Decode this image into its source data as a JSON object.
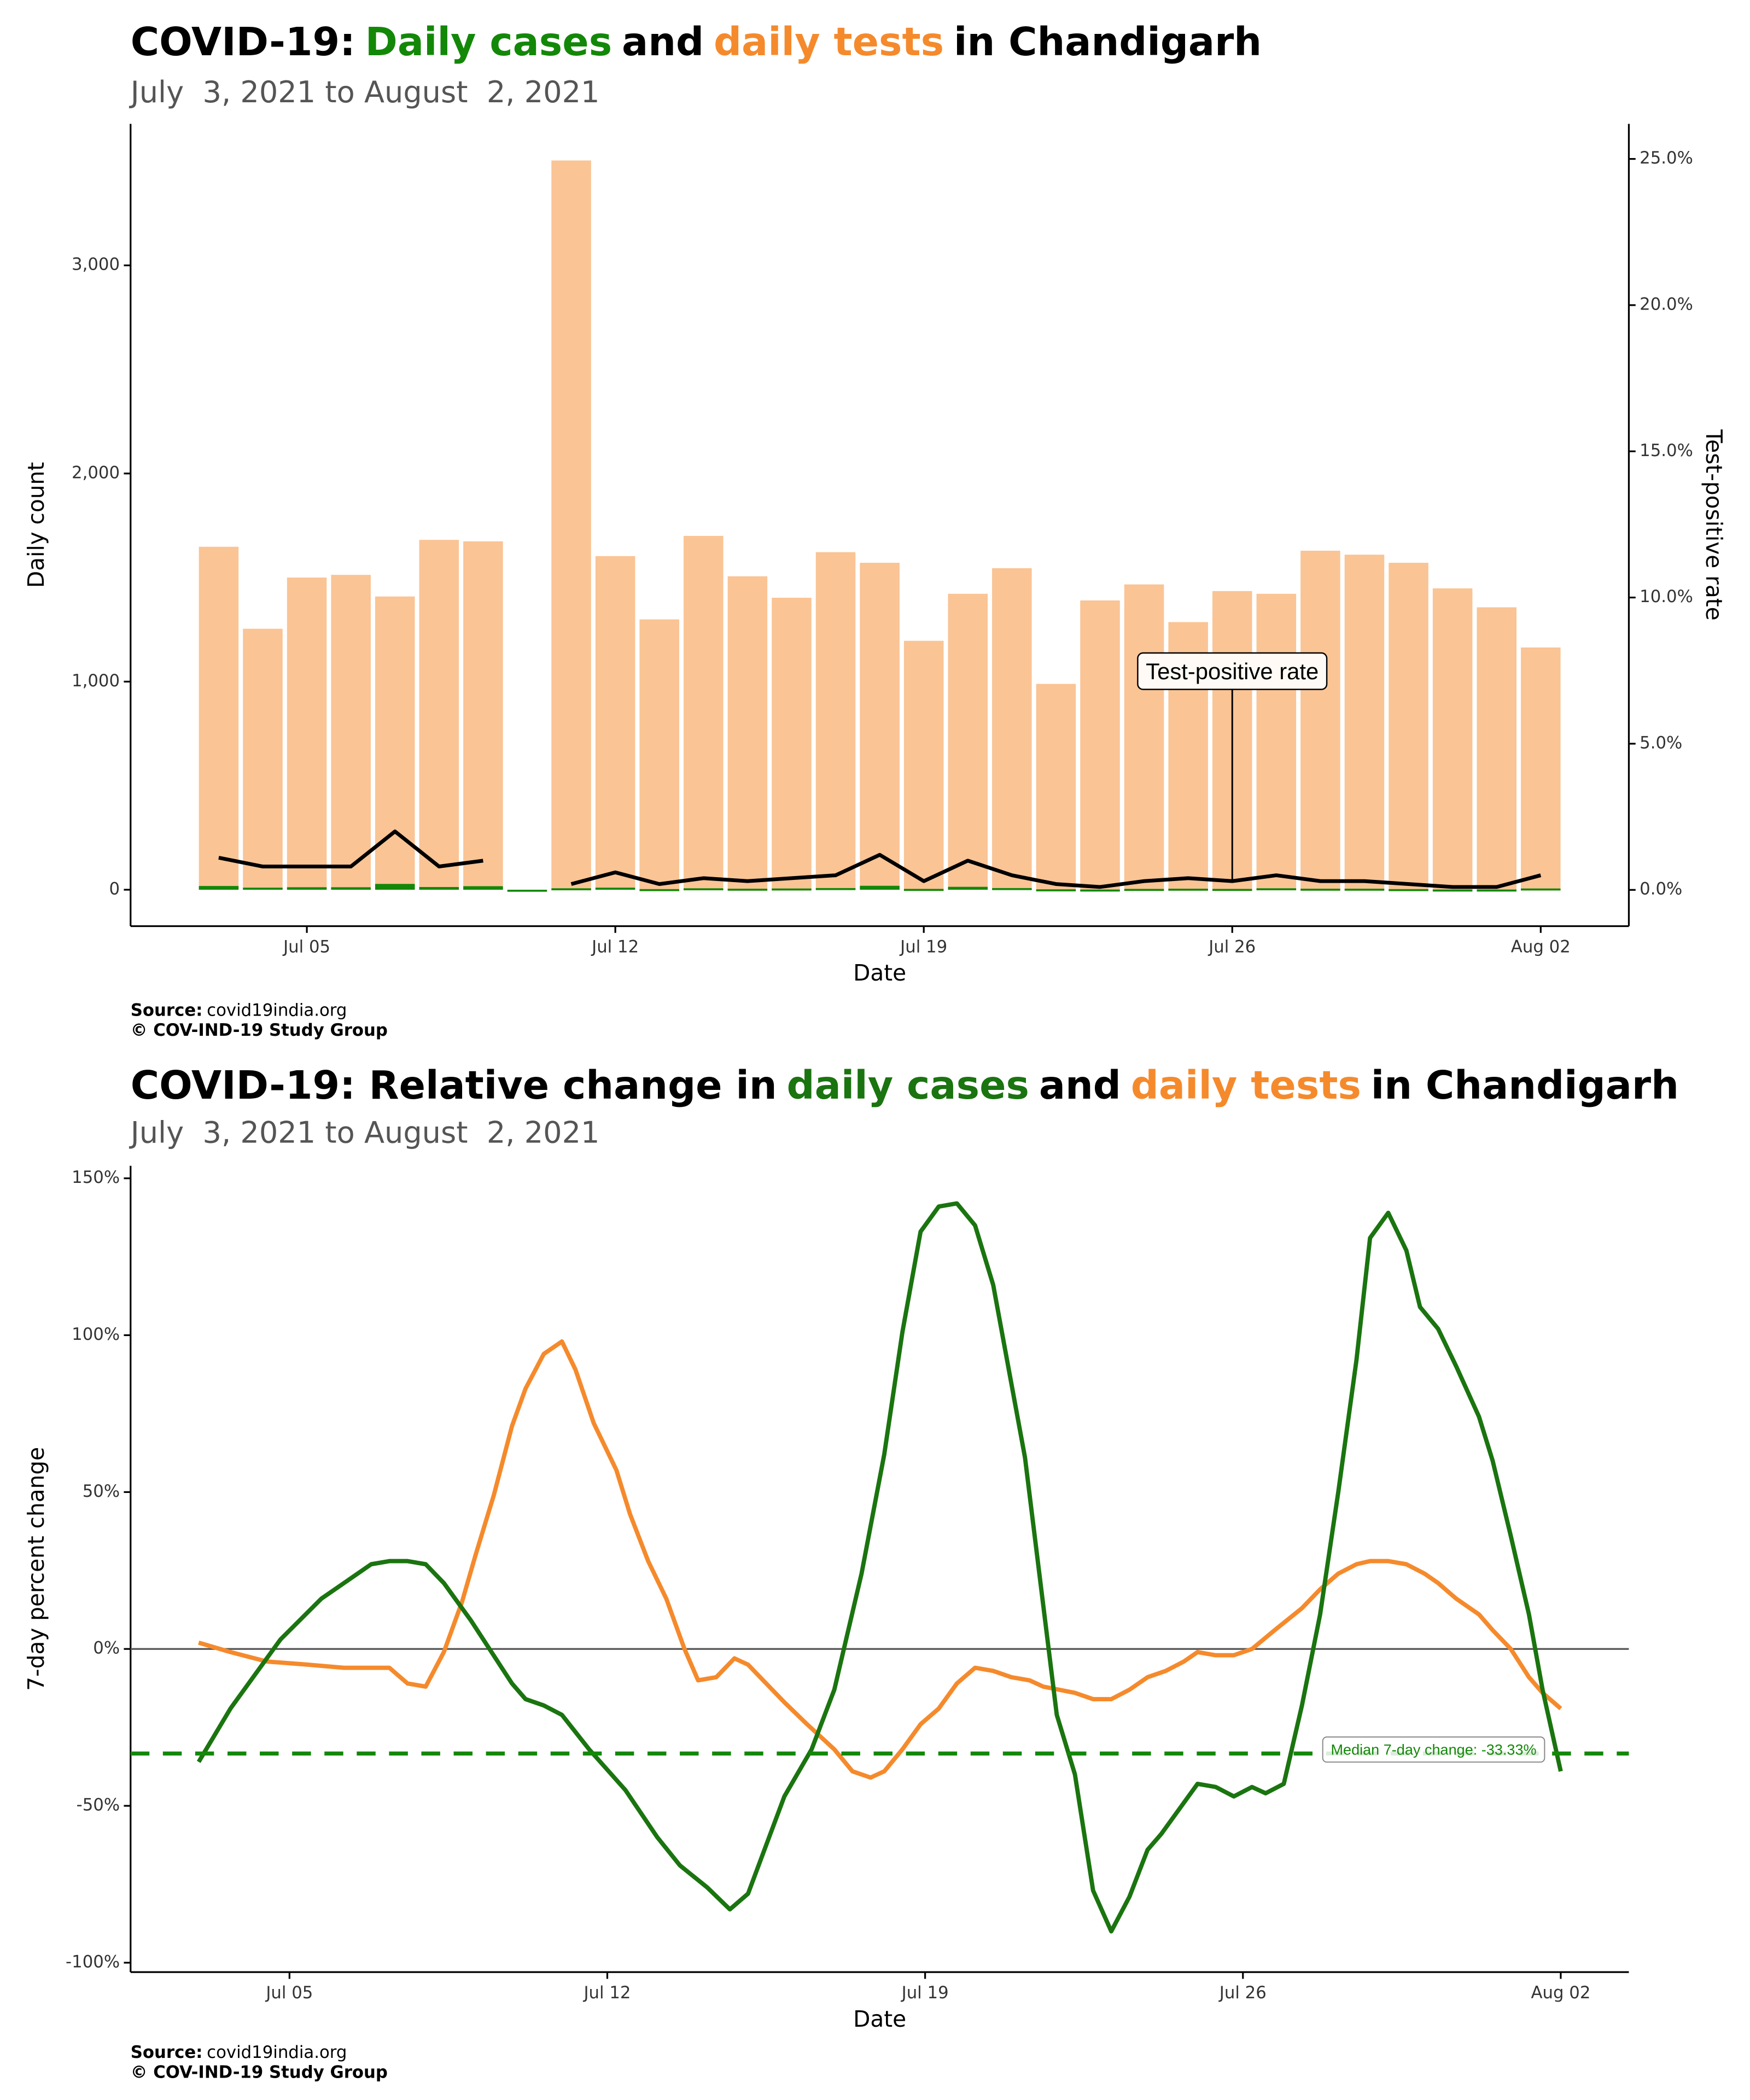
{
  "chart_data": [
    {
      "type": "bar",
      "title": [
        "COVID-19:",
        "and",
        "in Chandigarh"
      ],
      "subtitle": "July  3, 2021 to August  2, 2021",
      "xlabel": "Date",
      "ylabel": "Daily count",
      "y2label": "Test-positive rate",
      "source_label": "Source:",
      "source": "covid19india.org",
      "credit": "© COV-IND-19 Study Group",
      "x": [
        3,
        4,
        5,
        6,
        7,
        8,
        9,
        10,
        11,
        12,
        13,
        14,
        15,
        16,
        17,
        18,
        19,
        20,
        21,
        22,
        23,
        24,
        25,
        26,
        27,
        28,
        29,
        30,
        31,
        32,
        33
      ],
      "xlim": [
        1,
        35
      ],
      "xticks": [
        {
          "value": 5,
          "label": "Jul 05"
        },
        {
          "value": 12,
          "label": "Jul 12"
        },
        {
          "value": 19,
          "label": "Jul 19"
        },
        {
          "value": 26,
          "label": "Jul 26"
        },
        {
          "value": 33,
          "label": "Aug 02"
        }
      ],
      "ylim": [
        -175,
        3680
      ],
      "yticks": [
        0,
        {
          "value": 1000,
          "label": "1,000"
        },
        {
          "value": 2000,
          "label": "2,000"
        },
        {
          "value": 3000,
          "label": "3,000"
        }
      ],
      "y2lim": [
        -1.24,
        26.2
      ],
      "y2ticks": [
        {
          "value": 0,
          "label": "0.0%"
        },
        {
          "value": 5,
          "label": "5.0%"
        },
        {
          "value": 10,
          "label": "10.0%"
        },
        {
          "value": 15,
          "label": "15.0%"
        },
        {
          "value": 20,
          "label": "20.0%"
        },
        {
          "value": 25,
          "label": "25.0%"
        }
      ],
      "grid": false,
      "series": [
        {
          "name": "Daily cases",
          "color": "#138808",
          "values": [
            18,
            10,
            12,
            12,
            28,
            13,
            17,
            0,
            7,
            10,
            3,
            7,
            5,
            6,
            8,
            19,
            4,
            14,
            8,
            2,
            1,
            4,
            5,
            4,
            7,
            5,
            5,
            3,
            1,
            1,
            6
          ]
        },
        {
          "name": "daily tests",
          "color": "#f58a2c",
          "alpha": 0.5,
          "values": [
            1648,
            1254,
            1500,
            1513,
            1409,
            1681,
            1674,
            null,
            3504,
            1603,
            1299,
            1700,
            1506,
            1403,
            1622,
            1571,
            1196,
            1422,
            1545,
            989,
            1390,
            1467,
            1286,
            1435,
            1422,
            1629,
            1610,
            1571,
            1448,
            1357,
            1164
          ]
        },
        {
          "name": "Test-positive rate",
          "color": "#000000",
          "type": "line",
          "axis": "y2",
          "annotate": true,
          "values": [
            1.1,
            0.8,
            0.8,
            0.8,
            2.0,
            0.8,
            1.0,
            null,
            0.2,
            0.6,
            0.2,
            0.4,
            0.3,
            0.4,
            0.5,
            1.2,
            0.3,
            1.0,
            0.5,
            0.2,
            0.1,
            0.3,
            0.4,
            0.3,
            0.5,
            0.3,
            0.3,
            0.2,
            0.1,
            0.1,
            0.5
          ]
        }
      ]
    },
    {
      "type": "line",
      "title": [
        "COVID-19: Relative change in",
        "and",
        "in Chandigarh"
      ],
      "subtitle": "July  3, 2021 to August  2, 2021",
      "xlabel": "Date",
      "ylabel": "7-day percent change",
      "source_label": "Source:",
      "source": "covid19india.org",
      "credit": "© COV-IND-19 Study Group",
      "xlim": [
        1.5,
        34.5
      ],
      "xticks": [
        {
          "value": 5,
          "label": "Jul 05"
        },
        {
          "value": 12,
          "label": "Jul 12"
        },
        {
          "value": 19,
          "label": "Jul 19"
        },
        {
          "value": 26,
          "label": "Jul 26"
        },
        {
          "value": 33,
          "label": "Aug 02"
        }
      ],
      "ylim": [
        -103,
        154
      ],
      "yticks": [
        {
          "value": -100,
          "label": "-100%"
        },
        {
          "value": -50,
          "label": "-50%"
        },
        {
          "value": 0,
          "label": "0%"
        },
        {
          "value": 50,
          "label": "50%"
        },
        {
          "value": 100,
          "label": "100%"
        },
        {
          "value": 150,
          "label": "150%"
        }
      ],
      "grid": false,
      "zero_line": true,
      "hlines": [
        {
          "value": -33.33,
          "label": "Median 7-day change: -33.33%",
          "color": "#138808"
        }
      ],
      "series": [
        {
          "name": "daily cases",
          "color": "#1a740f",
          "x": [
            3.0,
            3.7,
            4.8,
            5.7,
            6.8,
            7.2,
            7.6,
            8.0,
            8.4,
            9.0,
            9.9,
            10.2,
            10.6,
            11.0,
            11.6,
            12.4,
            13.1,
            13.6,
            14.2,
            14.7,
            15.1,
            15.9,
            16.5,
            17.0,
            17.6,
            18.1,
            18.5,
            18.9,
            19.3,
            19.7,
            20.1,
            20.5,
            21.2,
            21.9,
            22.3,
            22.7,
            23.1,
            23.5,
            23.9,
            24.2,
            24.7,
            25.0,
            25.4,
            25.8,
            26.2,
            26.5,
            26.9,
            27.3,
            27.7,
            28.1,
            28.5,
            28.8,
            29.2,
            29.6,
            29.9,
            30.3,
            30.7,
            31.2,
            31.5,
            31.9,
            32.3,
            32.6,
            33.0
          ],
          "values": [
            -36,
            -19,
            3,
            16,
            27,
            28,
            28,
            27,
            21,
            9,
            -11,
            -16,
            -18,
            -21,
            -32,
            -45,
            -60,
            -69,
            -76,
            -83,
            -78,
            -47,
            -32,
            -13,
            24,
            62,
            101,
            133,
            141,
            142,
            135,
            116,
            61,
            -21,
            -40,
            -77,
            -90,
            -79,
            -64,
            -59,
            -49,
            -43,
            -44,
            -47,
            -44,
            -46,
            -43,
            -18,
            11,
            50,
            92,
            131,
            139,
            127,
            109,
            102,
            90,
            74,
            60,
            36,
            11,
            -13,
            -39
          ]
        },
        {
          "name": "daily tests",
          "color": "#f58a2c",
          "x": [
            3.0,
            3.7,
            4.5,
            5.4,
            6.2,
            6.8,
            7.2,
            7.6,
            8.0,
            8.4,
            8.8,
            9.1,
            9.5,
            9.9,
            10.2,
            10.6,
            11.0,
            11.3,
            11.7,
            12.2,
            12.5,
            12.9,
            13.3,
            13.7,
            14.0,
            14.4,
            14.8,
            15.1,
            15.9,
            16.4,
            17.0,
            17.4,
            17.8,
            18.1,
            18.5,
            18.9,
            19.3,
            19.7,
            20.1,
            20.5,
            20.9,
            21.3,
            21.6,
            22.3,
            22.7,
            23.1,
            23.5,
            23.9,
            24.3,
            24.7,
            25.0,
            25.4,
            25.8,
            26.2,
            26.7,
            27.3,
            27.7,
            28.1,
            28.5,
            28.8,
            29.2,
            29.6,
            30.0,
            30.3,
            30.7,
            31.2,
            31.5,
            31.9,
            32.3,
            32.6,
            33.0
          ],
          "values": [
            2,
            -1,
            -4,
            -5,
            -6,
            -6,
            -6,
            -11,
            -12,
            -1,
            15,
            30,
            49,
            71,
            83,
            94,
            98,
            89,
            72,
            57,
            43,
            28,
            16,
            0,
            -10,
            -9,
            -3,
            -5,
            -17,
            -24,
            -32,
            -39,
            -41,
            -39,
            -32,
            -24,
            -19,
            -11,
            -6,
            -7,
            -9,
            -10,
            -12,
            -14,
            -16,
            -16,
            -13,
            -9,
            -7,
            -4,
            -1,
            -2,
            -2,
            0,
            6,
            13,
            19,
            24,
            27,
            28,
            28,
            27,
            24,
            21,
            16,
            11,
            6,
            0,
            -9,
            -14,
            -19
          ]
        }
      ]
    }
  ]
}
